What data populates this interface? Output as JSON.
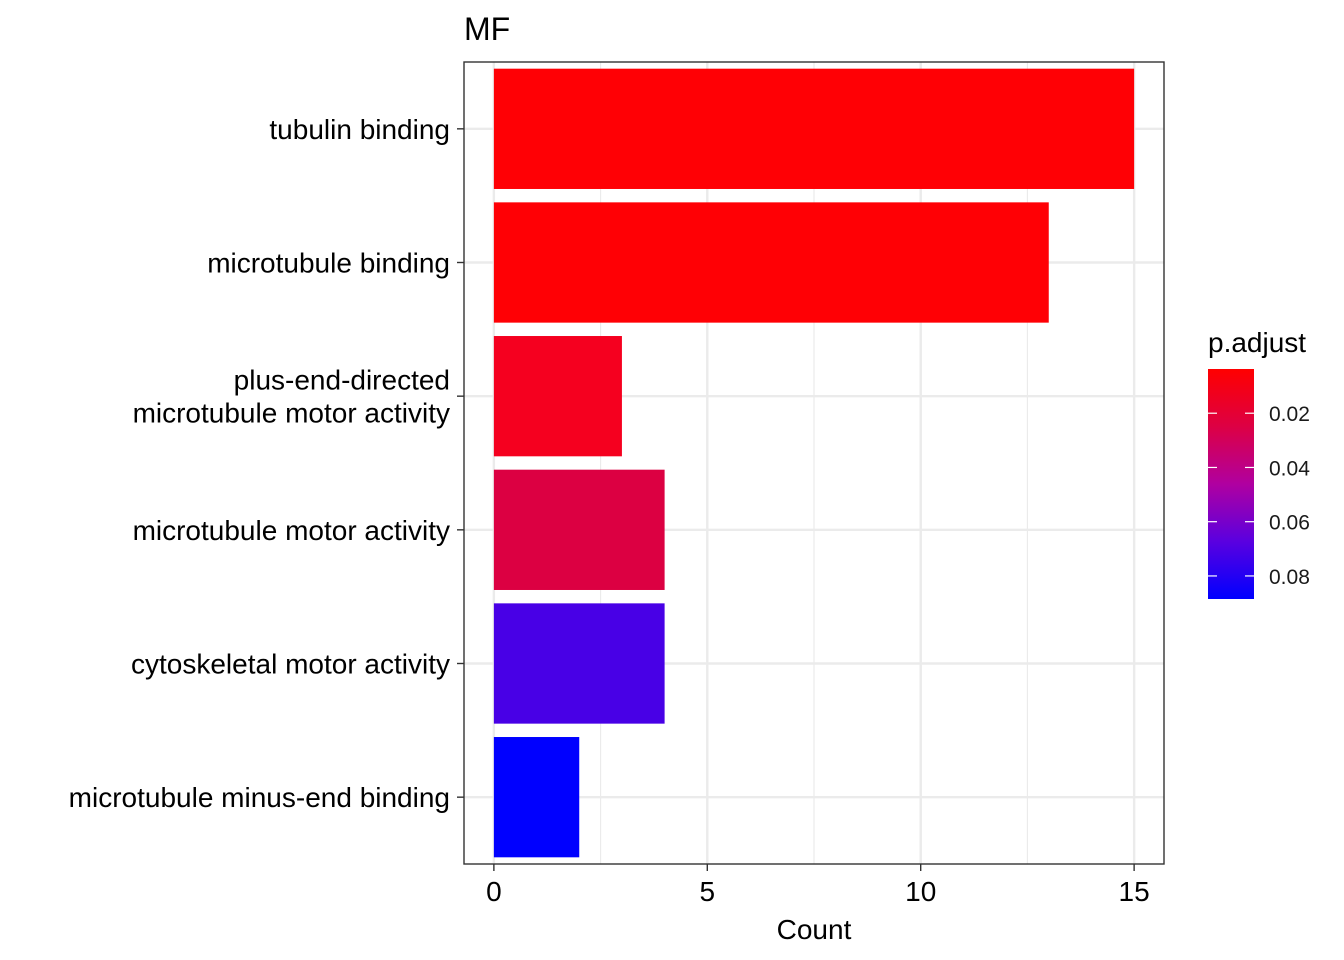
{
  "chart_data": {
    "type": "bar",
    "orientation": "horizontal",
    "title": "MF",
    "xlabel": "Count",
    "ylabel": "",
    "xlim": [
      -0.7,
      15.7
    ],
    "x_ticks": [
      0,
      5,
      10,
      15
    ],
    "grid": true,
    "categories": [
      "tubulin binding",
      "microtubule binding",
      "plus-end-directed\nmicrotubule motor activity",
      "microtubule motor activity",
      "cytoskeletal motor activity",
      "microtubule minus-end binding"
    ],
    "values": [
      15,
      13,
      3,
      4,
      4,
      2
    ],
    "bar_colors": [
      "#ff0005",
      "#ff0005",
      "#f5001f",
      "#dc0042",
      "#4800e6",
      "#0000ff"
    ],
    "legend": {
      "title": "p.adjust",
      "placement": "right",
      "gradient": [
        "#ff0000",
        "#dd0044",
        "#b000a0",
        "#5a00e0",
        "#0000ff"
      ],
      "ticks": [
        {
          "label": "0.02",
          "value": 0.02
        },
        {
          "label": "0.04",
          "value": 0.04
        },
        {
          "label": "0.06",
          "value": 0.06
        },
        {
          "label": "0.08",
          "value": 0.08
        }
      ],
      "range": [
        0.0037,
        0.0885
      ]
    }
  }
}
